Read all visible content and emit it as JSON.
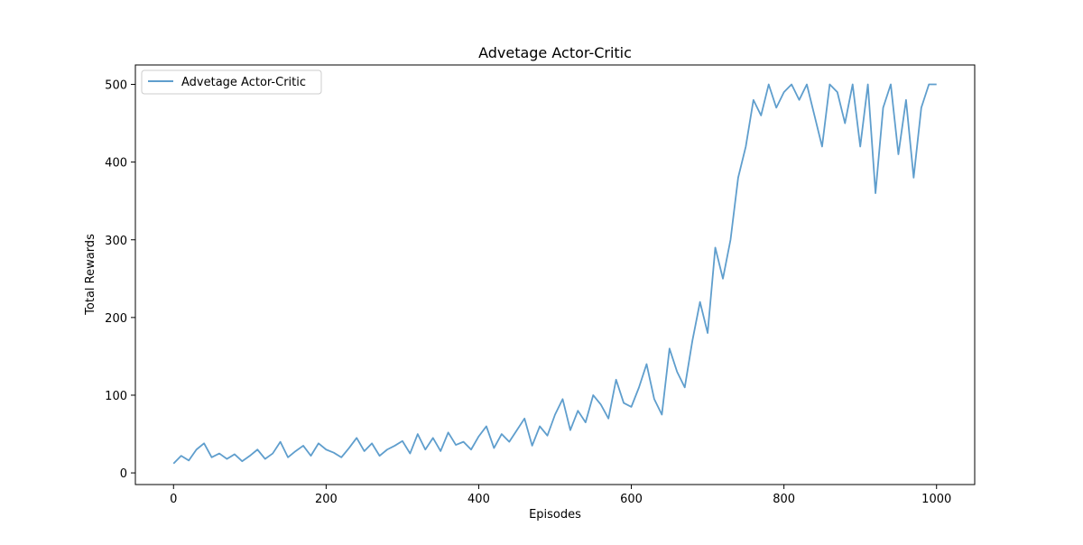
{
  "chart_data": {
    "type": "line",
    "title": "Advetage Actor-Critic",
    "xlabel": "Episodes",
    "ylabel": "Total Rewards",
    "xlim": [
      -50,
      1050
    ],
    "ylim": [
      -15,
      525
    ],
    "xticks": [
      0,
      200,
      400,
      600,
      800,
      1000
    ],
    "yticks": [
      0,
      100,
      200,
      300,
      400,
      500
    ],
    "grid": false,
    "legend_position": "top-left",
    "series": [
      {
        "name": "Advetage Actor-Critic",
        "color": "#5f9ecd",
        "x_start": 0,
        "x_step": 10,
        "values": [
          12,
          22,
          16,
          30,
          38,
          20,
          25,
          18,
          24,
          15,
          22,
          30,
          18,
          25,
          40,
          20,
          28,
          35,
          22,
          38,
          30,
          26,
          20,
          32,
          45,
          28,
          38,
          22,
          30,
          35,
          41,
          25,
          50,
          30,
          45,
          28,
          52,
          36,
          40,
          30,
          47,
          60,
          32,
          50,
          40,
          55,
          70,
          35,
          60,
          48,
          75,
          95,
          55,
          80,
          65,
          100,
          88,
          70,
          120,
          90,
          85,
          110,
          140,
          95,
          75,
          160,
          130,
          110,
          170,
          220,
          180,
          290,
          250,
          300,
          380,
          420,
          480,
          460,
          500,
          470,
          490,
          500,
          480,
          500,
          460,
          420,
          500,
          490,
          450,
          500,
          420,
          500,
          360,
          470,
          500,
          410,
          480,
          380,
          470,
          500,
          500
        ]
      }
    ]
  }
}
